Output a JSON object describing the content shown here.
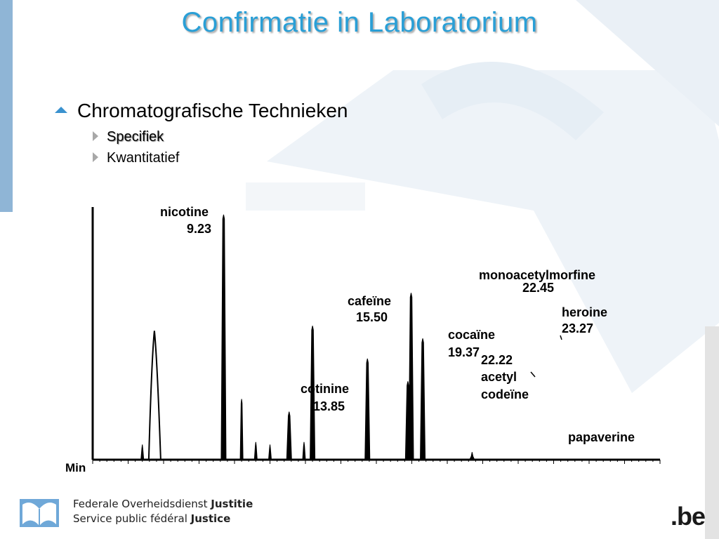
{
  "slide": {
    "title": "Confirmatie in Laboratorium",
    "bullet": "Chromatografische Technieken",
    "sub_bullets": [
      "Specifiek",
      "Kwantitatief"
    ]
  },
  "footer": {
    "line1_normal": "Federale Overheidsdienst ",
    "line1_bold": "Justitie",
    "line2_normal": "Service public fédéral ",
    "line2_bold": "Justice",
    "logo_text": ".be"
  },
  "colors": {
    "title": "#2a9fd6",
    "accent_bar": "#8fb5d6",
    "bullet_arrow": "#3a92cf",
    "logo_dot": "#f3c400"
  },
  "chart_data": {
    "type": "line",
    "xlabel": "Min",
    "ylabel": "",
    "xlim": [
      0,
      40
    ],
    "ylim": [
      0,
      100
    ],
    "grid": false,
    "peaks": [
      {
        "name": "nicotine",
        "rt": "9.23",
        "x": 9.23,
        "height": 97
      },
      {
        "name": "cotinine",
        "rt": "13.85",
        "x": 13.85,
        "height": 19
      },
      {
        "name": "cafeïne",
        "rt": "15.50",
        "x": 15.5,
        "height": 53
      },
      {
        "name": "cocaïne",
        "rt": "19.37",
        "x": 19.37,
        "height": 40
      },
      {
        "name": "acetyl codeïne",
        "rt": "22.22",
        "x": 22.22,
        "height": 31
      },
      {
        "name": "monoacetylmorfine",
        "rt": "22.45",
        "x": 22.45,
        "height": 66
      },
      {
        "name": "heroine",
        "rt": "23.27",
        "x": 23.27,
        "height": 48
      },
      {
        "name": "papaverine",
        "rt": "",
        "x": 26.75,
        "height": 3
      }
    ],
    "unlabeled_peaks": [
      {
        "x": 4.4,
        "height": 51
      },
      {
        "x": 3.5,
        "height": 6
      },
      {
        "x": 10.5,
        "height": 24
      },
      {
        "x": 11.5,
        "height": 7
      },
      {
        "x": 12.5,
        "height": 6
      },
      {
        "x": 14.9,
        "height": 7
      }
    ]
  }
}
